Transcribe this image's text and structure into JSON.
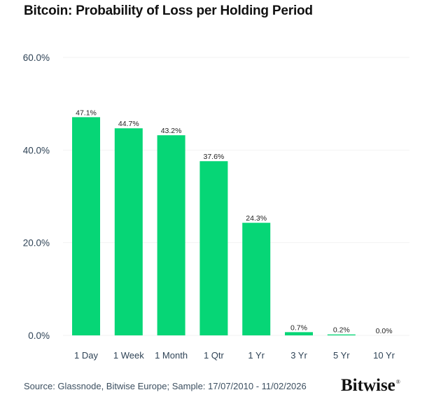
{
  "chart_data": {
    "type": "bar",
    "title": "Bitcoin: Probability of Loss per Holding Period",
    "xlabel": "",
    "ylabel": "",
    "categories": [
      "1 Day",
      "1 Week",
      "1 Month",
      "1 Qtr",
      "1 Yr",
      "3 Yr",
      "5 Yr",
      "10 Yr"
    ],
    "values": [
      47.1,
      44.7,
      43.2,
      37.6,
      24.3,
      0.7,
      0.2,
      0.0
    ],
    "data_labels": [
      "47.1%",
      "44.7%",
      "43.2%",
      "37.6%",
      "24.3%",
      "0.7%",
      "0.2%",
      "0.0%"
    ],
    "ylim": [
      0,
      60
    ],
    "yticks": [
      0,
      20,
      40,
      60
    ],
    "ytick_labels": [
      "0.0%",
      "20.0%",
      "40.0%",
      "60.0%"
    ],
    "grid": true,
    "legend": "none",
    "bar_color": "#06d676",
    "grid_color": "#f2f2f2"
  },
  "footer": {
    "source": "Source: Glassnode, Bitwise Europe; Sample: 17/07/2010 - 11/02/2026",
    "logo_text": "Bitwise",
    "logo_mark": "®"
  }
}
